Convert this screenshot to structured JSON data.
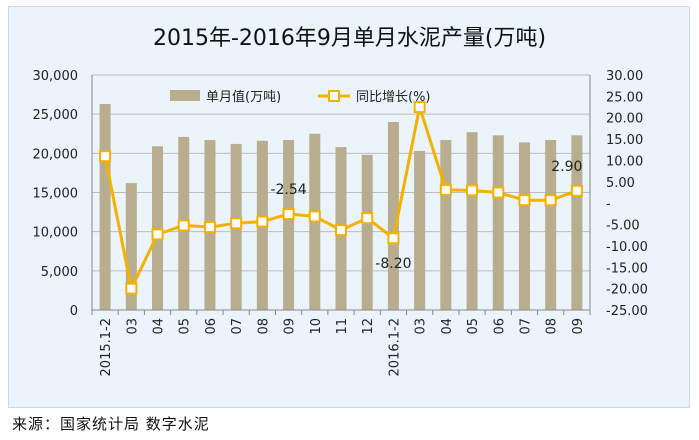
{
  "chart_data": {
    "type": "bar+line",
    "title": "2015年-2016年9月单月水泥产量(万吨)",
    "categories": [
      "2015.1-2",
      "03",
      "04",
      "05",
      "06",
      "07",
      "08",
      "09",
      "10",
      "11",
      "12",
      "2016.1-2",
      "03",
      "04",
      "05",
      "06",
      "07",
      "08",
      "09"
    ],
    "series": [
      {
        "name": "单月值(万吨)",
        "type": "bar",
        "axis": "left",
        "color": "#b8ad8e",
        "values": [
          26300,
          16200,
          20900,
          22100,
          21700,
          21200,
          21600,
          21700,
          22500,
          20800,
          19800,
          24000,
          20300,
          21700,
          22700,
          22300,
          21400,
          21700,
          22300
        ]
      },
      {
        "name": "同比增长(%)",
        "type": "line",
        "axis": "right",
        "color": "#f4b100",
        "values": [
          11.0,
          -20.0,
          -7.3,
          -5.2,
          -5.6,
          -4.7,
          -4.3,
          -2.54,
          -3.1,
          -6.3,
          -3.5,
          -8.2,
          22.5,
          3.1,
          3.0,
          2.5,
          0.7,
          0.7,
          2.9
        ]
      }
    ],
    "y_left": {
      "min": 0,
      "max": 30000,
      "step": 5000,
      "ticks": [
        "0",
        "5,000",
        "10,000",
        "15,000",
        "20,000",
        "25,000",
        "30,000"
      ]
    },
    "y_right": {
      "min": -25,
      "max": 30,
      "step": 5,
      "ticks": [
        "-25.00",
        "-20.00",
        "-15.00",
        "-10.00",
        "-5.00",
        "-",
        "5.00",
        "10.00",
        "15.00",
        "20.00",
        "25.00",
        "30.00"
      ]
    },
    "data_labels": [
      {
        "index": 7,
        "text": "-2.54"
      },
      {
        "index": 11,
        "text": "-8.20"
      },
      {
        "index": 18,
        "text": "2.90"
      }
    ],
    "legend_position": "top-left",
    "grid": true
  },
  "source": "来源：国家统计局  数字水泥",
  "colors": {
    "background": "#eaf4fa",
    "grid": "#bcbcbc",
    "bar": "#b8ad8e",
    "line": "#f4b100"
  }
}
